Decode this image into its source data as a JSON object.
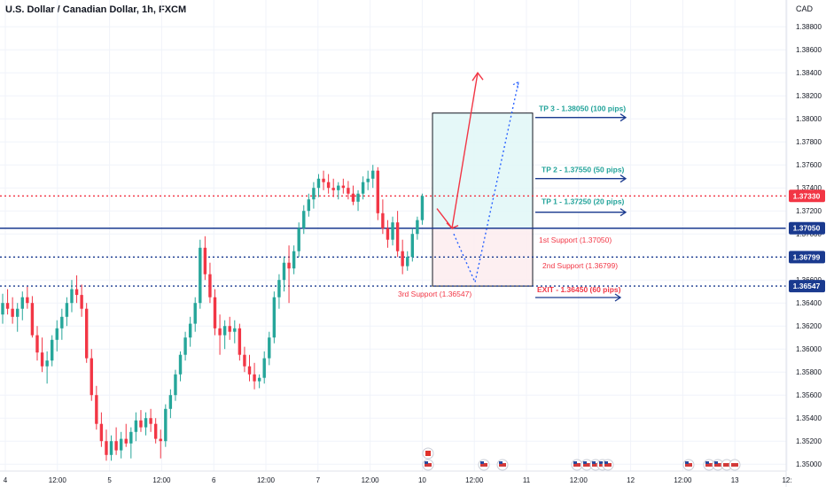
{
  "header": {
    "title": "U.S. Dollar / Canadian Dollar, 1h, FXCM",
    "currency": "CAD"
  },
  "chart_data": {
    "type": "candlestick",
    "symbol": "USDCAD",
    "timeframe": "1h",
    "ylim": [
      1.3494,
      1.3894
    ],
    "y_ticks": [
      "1.38800",
      "1.38600",
      "1.38400",
      "1.38200",
      "1.38000",
      "1.37800",
      "1.37600",
      "1.37400",
      "1.37200",
      "1.37000",
      "1.36800",
      "1.36600",
      "1.36400",
      "1.36200",
      "1.36000",
      "1.35800",
      "1.35600",
      "1.35400",
      "1.35200",
      "1.35000"
    ],
    "x_ticks": [
      "4",
      "12:00",
      "5",
      "12:00",
      "6",
      "12:00",
      "7",
      "12:00",
      "10",
      "12:00",
      "11",
      "12:00",
      "12",
      "12:00",
      "13",
      "12:"
    ],
    "candles": [
      [
        1.363,
        1.3648,
        1.3622,
        1.364
      ],
      [
        1.364,
        1.3652,
        1.363,
        1.3635
      ],
      [
        1.3635,
        1.3645,
        1.3622,
        1.3628
      ],
      [
        1.3628,
        1.364,
        1.3615,
        1.3635
      ],
      [
        1.3635,
        1.365,
        1.3625,
        1.3645
      ],
      [
        1.3645,
        1.3654,
        1.3635,
        1.364
      ],
      [
        1.364,
        1.3646,
        1.361,
        1.3612
      ],
      [
        1.3612,
        1.362,
        1.359,
        1.3597
      ],
      [
        1.3597,
        1.361,
        1.358,
        1.3585
      ],
      [
        1.3585,
        1.3598,
        1.357,
        1.359
      ],
      [
        1.359,
        1.3612,
        1.3585,
        1.3608
      ],
      [
        1.3608,
        1.3625,
        1.3598,
        1.3618
      ],
      [
        1.3618,
        1.3635,
        1.3608,
        1.3628
      ],
      [
        1.3628,
        1.3645,
        1.362,
        1.364
      ],
      [
        1.364,
        1.366,
        1.3632,
        1.3652
      ],
      [
        1.3652,
        1.3664,
        1.364,
        1.3647
      ],
      [
        1.3647,
        1.3656,
        1.3628,
        1.3635
      ],
      [
        1.3635,
        1.364,
        1.3588,
        1.3592
      ],
      [
        1.3592,
        1.36,
        1.3555,
        1.356
      ],
      [
        1.356,
        1.3568,
        1.353,
        1.3535
      ],
      [
        1.3535,
        1.3545,
        1.3515,
        1.352
      ],
      [
        1.352,
        1.353,
        1.3503,
        1.3508
      ],
      [
        1.3508,
        1.3525,
        1.3503,
        1.352
      ],
      [
        1.352,
        1.3532,
        1.3508,
        1.3512
      ],
      [
        1.3512,
        1.3528,
        1.3505,
        1.3522
      ],
      [
        1.3522,
        1.3535,
        1.3515,
        1.3518
      ],
      [
        1.3518,
        1.3532,
        1.3505,
        1.3528
      ],
      [
        1.3528,
        1.3545,
        1.352,
        1.3538
      ],
      [
        1.3538,
        1.3547,
        1.3528,
        1.3532
      ],
      [
        1.3532,
        1.3545,
        1.3525,
        1.354
      ],
      [
        1.354,
        1.3548,
        1.3528,
        1.3535
      ],
      [
        1.3535,
        1.354,
        1.3518,
        1.3522
      ],
      [
        1.3522,
        1.353,
        1.3505,
        1.352
      ],
      [
        1.352,
        1.3552,
        1.3515,
        1.3548
      ],
      [
        1.3548,
        1.3565,
        1.354,
        1.356
      ],
      [
        1.356,
        1.3582,
        1.3555,
        1.3578
      ],
      [
        1.3578,
        1.3598,
        1.3572,
        1.3595
      ],
      [
        1.3595,
        1.3615,
        1.359,
        1.361
      ],
      [
        1.361,
        1.3628,
        1.3602,
        1.3622
      ],
      [
        1.3622,
        1.3645,
        1.3615,
        1.364
      ],
      [
        1.364,
        1.3695,
        1.3635,
        1.3688
      ],
      [
        1.3688,
        1.3698,
        1.366,
        1.3665
      ],
      [
        1.3665,
        1.3675,
        1.364,
        1.3645
      ],
      [
        1.3645,
        1.3652,
        1.3612,
        1.3618
      ],
      [
        1.3618,
        1.363,
        1.3595,
        1.3612
      ],
      [
        1.3612,
        1.3625,
        1.36,
        1.362
      ],
      [
        1.362,
        1.3628,
        1.3608,
        1.3615
      ],
      [
        1.3615,
        1.3625,
        1.3605,
        1.3618
      ],
      [
        1.3618,
        1.3622,
        1.359,
        1.3595
      ],
      [
        1.3595,
        1.3602,
        1.358,
        1.3585
      ],
      [
        1.3585,
        1.3595,
        1.3572,
        1.3578
      ],
      [
        1.3578,
        1.3588,
        1.3565,
        1.3572
      ],
      [
        1.3572,
        1.3578,
        1.3566,
        1.3575
      ],
      [
        1.3575,
        1.3598,
        1.357,
        1.3592
      ],
      [
        1.3592,
        1.3615,
        1.3586,
        1.361
      ],
      [
        1.361,
        1.365,
        1.3605,
        1.3645
      ],
      [
        1.3645,
        1.3665,
        1.3635,
        1.366
      ],
      [
        1.366,
        1.368,
        1.365,
        1.3675
      ],
      [
        1.3675,
        1.369,
        1.364,
        1.367
      ],
      [
        1.367,
        1.369,
        1.3665,
        1.3685
      ],
      [
        1.3685,
        1.371,
        1.368,
        1.3705
      ],
      [
        1.3705,
        1.3725,
        1.37,
        1.372
      ],
      [
        1.372,
        1.3735,
        1.3715,
        1.373
      ],
      [
        1.373,
        1.3745,
        1.3722,
        1.374
      ],
      [
        1.374,
        1.3752,
        1.3732,
        1.3748
      ],
      [
        1.3748,
        1.3755,
        1.3738,
        1.3745
      ],
      [
        1.3745,
        1.3752,
        1.3735,
        1.374
      ],
      [
        1.374,
        1.3748,
        1.3732,
        1.3738
      ],
      [
        1.3738,
        1.3745,
        1.373,
        1.3742
      ],
      [
        1.3742,
        1.3748,
        1.3735,
        1.374
      ],
      [
        1.374,
        1.3746,
        1.373,
        1.3735
      ],
      [
        1.3735,
        1.3742,
        1.3725,
        1.3728
      ],
      [
        1.3728,
        1.3738,
        1.372,
        1.3735
      ],
      [
        1.3735,
        1.375,
        1.373,
        1.3745
      ],
      [
        1.3745,
        1.3755,
        1.3738,
        1.3748
      ],
      [
        1.3748,
        1.376,
        1.374,
        1.3755
      ],
      [
        1.3755,
        1.3758,
        1.3712,
        1.3718
      ],
      [
        1.3718,
        1.373,
        1.37,
        1.3705
      ],
      [
        1.3705,
        1.3712,
        1.3688,
        1.3695
      ],
      [
        1.3695,
        1.3715,
        1.369,
        1.371
      ],
      [
        1.371,
        1.372,
        1.368,
        1.3685
      ],
      [
        1.3685,
        1.3695,
        1.3665,
        1.3672
      ],
      [
        1.3672,
        1.3685,
        1.3668,
        1.368
      ],
      [
        1.368,
        1.3705,
        1.3676,
        1.37
      ],
      [
        1.37,
        1.3715,
        1.3695,
        1.3712
      ],
      [
        1.3712,
        1.3735,
        1.3708,
        1.3733
      ]
    ],
    "price_markers": [
      {
        "label": "1.37330",
        "color": "#f23645"
      },
      {
        "label": "1.37050",
        "color": "#1a3a8f"
      },
      {
        "label": "1.36799",
        "color": "#1a3a8f"
      },
      {
        "label": "1.36547",
        "color": "#1a3a8f"
      }
    ],
    "horizontal_lines": [
      {
        "value": 1.3733,
        "style": "dotted",
        "color": "#f23645"
      },
      {
        "value": 1.3705,
        "style": "solid",
        "color": "#1a3a8f"
      },
      {
        "value": 1.36799,
        "style": "dotted",
        "color": "#1a3a8f"
      },
      {
        "value": 1.36547,
        "style": "dotted",
        "color": "#1a3a8f"
      }
    ],
    "annotations": {
      "tp3": "TP 3 - 1.38050 (100 pips)",
      "tp2": "TP 2 - 1.37550 (50 pips)",
      "tp1": "TP 1 - 1.37250 (20 pips)",
      "support1": "1st Support (1.37050)",
      "support2": "2nd Support (1.36799)",
      "support3": "3rd Support (1.36547)",
      "exit": "EXIT - 1.36450 (60 pips)"
    },
    "annotation_values": {
      "tp3": 1.3805,
      "tp2": 1.3755,
      "tp1": 1.3725,
      "exit": 1.3645
    },
    "position_box": {
      "entry": 1.3705,
      "target": 1.3805,
      "stop": 1.36547
    },
    "scenario_bull": [
      [
        1.3722,
        1.3712
      ],
      [
        1.3712,
        1.3705
      ],
      [
        1.3705,
        1.384
      ]
    ],
    "scenario_bear": [
      [
        1.3705,
        1.37
      ],
      [
        1.37,
        1.3658
      ],
      [
        1.3658,
        1.3832
      ]
    ],
    "event_flags": [
      {
        "country": "CA"
      },
      {
        "country": "US"
      },
      {
        "country": "US"
      },
      {
        "country": "US"
      },
      {
        "country": "US"
      },
      {
        "country": "US"
      },
      {
        "country": "US"
      },
      {
        "country": "US"
      },
      {
        "country": "US"
      },
      {
        "country": "US"
      },
      {
        "country": "US"
      },
      {
        "country": "US"
      }
    ],
    "colors": {
      "up": "#26a69a",
      "down": "#f23645",
      "guide": "#1a3a8f",
      "tp_text": "#22a39a",
      "grid": "#f0f3fa"
    }
  }
}
